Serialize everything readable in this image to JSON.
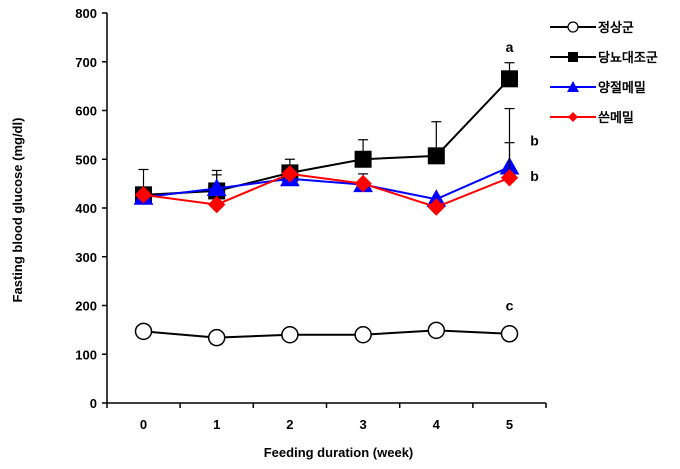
{
  "chart_data": {
    "type": "line",
    "title": "",
    "xlabel": "Feeding duration  (week)",
    "ylabel": "Fasting blood glucose  (mg/dl)",
    "x": [
      0,
      1,
      2,
      3,
      4,
      5
    ],
    "x_ticks": [
      "0",
      "1",
      "2",
      "3",
      "4",
      "5"
    ],
    "ylim": [
      0,
      800
    ],
    "y_ticks": [
      "0",
      "100",
      "200",
      "300",
      "400",
      "500",
      "600",
      "700",
      "800"
    ],
    "grid": false,
    "legend_position": "top-right",
    "series": [
      {
        "name": "정상군",
        "color": "#000000",
        "fill": "#ffffff",
        "marker": "circle",
        "values": [
          147,
          134,
          140,
          140,
          149,
          142
        ],
        "errors": [
          0,
          0,
          0,
          0,
          0,
          0
        ]
      },
      {
        "name": "당뇨대조군",
        "color": "#000000",
        "fill": "#000000",
        "marker": "square",
        "values": [
          427,
          435,
          472,
          500,
          507,
          665
        ],
        "errors": [
          52,
          42,
          28,
          40,
          70,
          33
        ]
      },
      {
        "name": "양절메밀",
        "color": "#0000ff",
        "fill": "#0000ff",
        "marker": "triangle",
        "values": [
          422,
          440,
          460,
          448,
          418,
          484
        ],
        "errors": [
          0,
          28,
          25,
          22,
          0,
          120
        ]
      },
      {
        "name": "쓴메밀",
        "color": "#ff0000",
        "fill": "#ff0000",
        "marker": "diamond",
        "values": [
          427,
          407,
          470,
          450,
          402,
          462
        ],
        "errors": [
          0,
          0,
          0,
          0,
          0,
          72
        ]
      }
    ],
    "annotations": [
      {
        "text": "a",
        "x": 5,
        "y": 720,
        "dx": 0
      },
      {
        "text": "b",
        "x": 5,
        "y": 528,
        "dx": 1
      },
      {
        "text": "b",
        "x": 5,
        "y": 455,
        "dx": 1
      },
      {
        "text": "c",
        "x": 5,
        "y": 190,
        "dx": 0
      }
    ]
  }
}
